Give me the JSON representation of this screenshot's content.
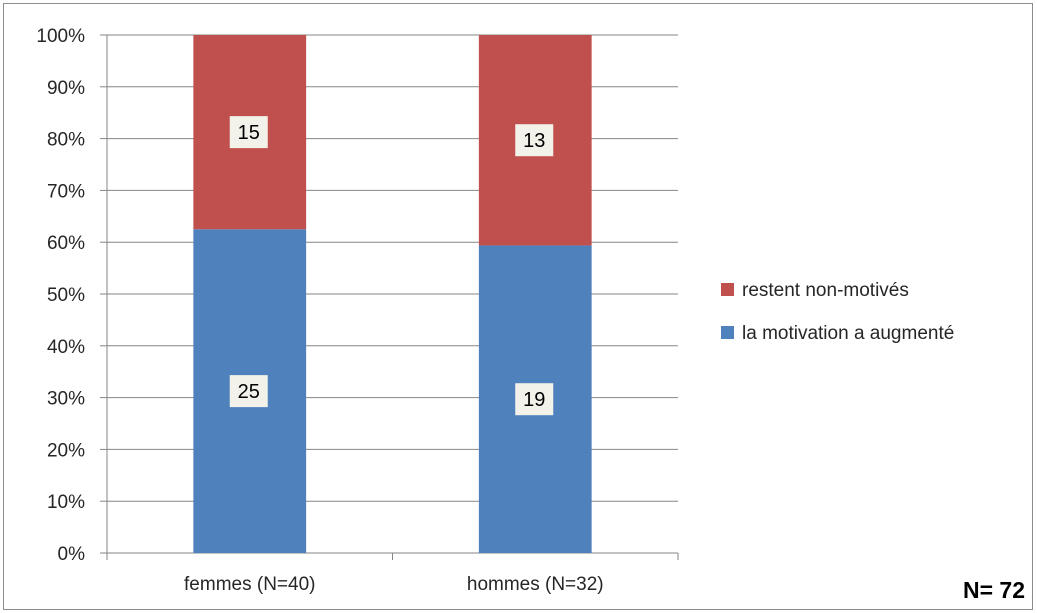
{
  "chart_data": {
    "type": "bar",
    "stacked": true,
    "percent": true,
    "categories": [
      "femmes (N=40)",
      "hommes (N=32)"
    ],
    "series": [
      {
        "name": "la motivation a augmenté",
        "values": [
          25,
          19
        ],
        "color": "#4f81bd"
      },
      {
        "name": "restent non-motivés",
        "values": [
          15,
          13
        ],
        "color": "#c0504d"
      }
    ],
    "y_ticks": [
      "0%",
      "10%",
      "20%",
      "30%",
      "40%",
      "50%",
      "60%",
      "70%",
      "80%",
      "90%",
      "100%"
    ],
    "ylim": [
      0,
      100
    ],
    "grid": true,
    "legend_position": "right",
    "legend_order": [
      "restent non-motivés",
      "la motivation a augmenté"
    ],
    "annotation": "N= 72"
  }
}
